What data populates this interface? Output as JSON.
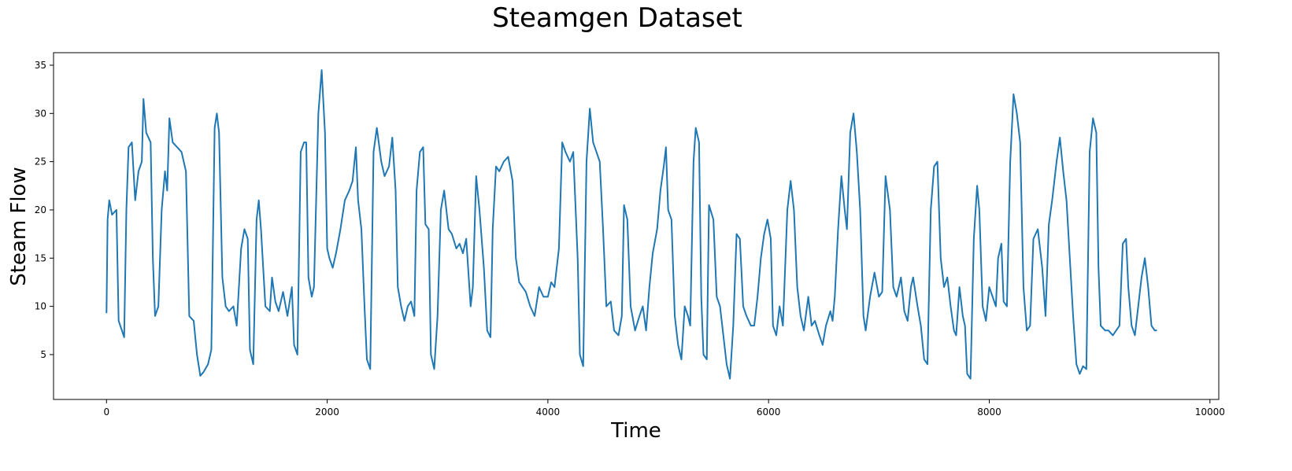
{
  "chart_data": {
    "type": "line",
    "title": "Steamgen Dataset",
    "x_label": "Time",
    "y_label": "Steam Flow",
    "color": "#1f77b4",
    "x": [
      0,
      10,
      25,
      50,
      90,
      110,
      140,
      160,
      180,
      200,
      230,
      260,
      290,
      320,
      335,
      360,
      380,
      400,
      420,
      440,
      470,
      500,
      530,
      550,
      570,
      600,
      640,
      680,
      720,
      750,
      790,
      820,
      850,
      880,
      920,
      950,
      980,
      1000,
      1020,
      1050,
      1080,
      1110,
      1150,
      1180,
      1220,
      1250,
      1280,
      1300,
      1330,
      1360,
      1380,
      1400,
      1440,
      1480,
      1500,
      1530,
      1560,
      1600,
      1640,
      1680,
      1700,
      1730,
      1760,
      1790,
      1810,
      1830,
      1860,
      1880,
      1920,
      1950,
      1980,
      2000,
      2020,
      2050,
      2080,
      2120,
      2160,
      2200,
      2230,
      2260,
      2280,
      2310,
      2340,
      2360,
      2390,
      2420,
      2450,
      2490,
      2520,
      2560,
      2590,
      2620,
      2640,
      2670,
      2700,
      2730,
      2760,
      2790,
      2810,
      2840,
      2870,
      2890,
      2920,
      2940,
      2970,
      3000,
      3030,
      3060,
      3100,
      3130,
      3170,
      3200,
      3230,
      3260,
      3300,
      3320,
      3350,
      3380,
      3420,
      3450,
      3480,
      3500,
      3530,
      3560,
      3600,
      3640,
      3680,
      3710,
      3740,
      3770,
      3800,
      3840,
      3880,
      3920,
      3960,
      4000,
      4030,
      4060,
      4100,
      4130,
      4160,
      4200,
      4230,
      4270,
      4290,
      4320,
      4350,
      4380,
      4410,
      4440,
      4470,
      4500,
      4530,
      4570,
      4600,
      4640,
      4670,
      4690,
      4720,
      4750,
      4790,
      4830,
      4860,
      4890,
      4920,
      4950,
      4990,
      5020,
      5050,
      5070,
      5090,
      5120,
      5150,
      5180,
      5210,
      5240,
      5270,
      5290,
      5320,
      5340,
      5370,
      5390,
      5410,
      5440,
      5460,
      5500,
      5530,
      5560,
      5600,
      5620,
      5650,
      5680,
      5710,
      5740,
      5770,
      5800,
      5840,
      5870,
      5900,
      5930,
      5960,
      5990,
      6020,
      6040,
      6070,
      6100,
      6130,
      6170,
      6200,
      6230,
      6260,
      6290,
      6320,
      6360,
      6390,
      6420,
      6460,
      6490,
      6520,
      6560,
      6580,
      6600,
      6630,
      6660,
      6690,
      6710,
      6740,
      6770,
      6800,
      6830,
      6860,
      6880,
      6920,
      6960,
      7000,
      7030,
      7060,
      7100,
      7130,
      7160,
      7200,
      7230,
      7260,
      7290,
      7310,
      7350,
      7380,
      7410,
      7440,
      7470,
      7500,
      7530,
      7560,
      7590,
      7620,
      7650,
      7680,
      7700,
      7730,
      7760,
      7780,
      7800,
      7830,
      7860,
      7890,
      7910,
      7940,
      7970,
      8000,
      8030,
      8060,
      8080,
      8110,
      8130,
      8160,
      8190,
      8220,
      8250,
      8280,
      8310,
      8340,
      8370,
      8400,
      8440,
      8480,
      8510,
      8540,
      8570,
      8610,
      8640,
      8670,
      8700,
      8730,
      8760,
      8790,
      8820,
      8850,
      8880,
      8910,
      8940,
      8970,
      8990,
      9010,
      9050,
      9080,
      9120,
      9150,
      9180,
      9210,
      9240,
      9260,
      9290,
      9320,
      9350,
      9380,
      9410,
      9440,
      9470,
      9500,
      9520
    ],
    "values": [
      9.3,
      19,
      21,
      19.5,
      20,
      8.5,
      7.5,
      6.8,
      20,
      26.5,
      27,
      21,
      24,
      25,
      31.5,
      28,
      27.5,
      27,
      15,
      9,
      10,
      20,
      24,
      22,
      29.5,
      27,
      26.5,
      26,
      24,
      9,
      8.5,
      5,
      2.8,
      3.2,
      4,
      5.5,
      28.5,
      30,
      28,
      13,
      10,
      9.5,
      10,
      8,
      16,
      18,
      17,
      5.5,
      4,
      19,
      21,
      18,
      10,
      9.5,
      13,
      10.5,
      9.5,
      11.5,
      9,
      12,
      6,
      5,
      26,
      27,
      27,
      13,
      11,
      12,
      30,
      34.5,
      28,
      16,
      15,
      14,
      15.5,
      18,
      21,
      22,
      23,
      26.5,
      21,
      18,
      9.5,
      4.5,
      3.5,
      26,
      28.5,
      25,
      23.5,
      24.5,
      27.5,
      22,
      12,
      10,
      8.5,
      10,
      10.5,
      9,
      22,
      26,
      26.5,
      18.5,
      18,
      5,
      3.5,
      9,
      20,
      22,
      18,
      17.5,
      16,
      16.5,
      15.5,
      17,
      10,
      12,
      23.5,
      20,
      14,
      7.5,
      6.8,
      18,
      24.5,
      24,
      25,
      25.5,
      23,
      15,
      12.5,
      12,
      11.5,
      10,
      9,
      12,
      11,
      11,
      12.5,
      12,
      16,
      27,
      26,
      25,
      26,
      15,
      5,
      3.8,
      25,
      30.5,
      27,
      26,
      25,
      18,
      10,
      10.5,
      7.5,
      7,
      9,
      20.5,
      19,
      10,
      7.5,
      9,
      10,
      7.5,
      12,
      15.5,
      18,
      22,
      24.5,
      26.5,
      20,
      19,
      9,
      6,
      4.5,
      10,
      9,
      8,
      25,
      28.5,
      27,
      11,
      5,
      4.5,
      20.5,
      19,
      11,
      10,
      6,
      4,
      2.5,
      8,
      17.5,
      17,
      10,
      9,
      8,
      8,
      11,
      15,
      17.5,
      19,
      17,
      8,
      7,
      10,
      8,
      20,
      23,
      20,
      12,
      9,
      7.5,
      11,
      8,
      8.5,
      7,
      6,
      8,
      9.5,
      8.5,
      11,
      18,
      23.5,
      20,
      18,
      28,
      30,
      26,
      20,
      9,
      7.5,
      11,
      13.5,
      11,
      11.5,
      23.5,
      20,
      12,
      11,
      13,
      9.5,
      8.5,
      12,
      13,
      10,
      8,
      4.5,
      4,
      20,
      24.5,
      25,
      15,
      12,
      13,
      10,
      7.5,
      7,
      12,
      9,
      8,
      3,
      2.5,
      17,
      22.5,
      20,
      10,
      8.5,
      12,
      11,
      10,
      15,
      16.5,
      10.5,
      10,
      25,
      32,
      30,
      27,
      12,
      7.5,
      8,
      17,
      18,
      14,
      9,
      18.5,
      21,
      25,
      27.5,
      24,
      21,
      15,
      9,
      4,
      3,
      3.8,
      3.5,
      26,
      29.5,
      28,
      14,
      8,
      7.5,
      7.5,
      7,
      7.5,
      8,
      16.5,
      17,
      12,
      8,
      7,
      10,
      13,
      15,
      12,
      8,
      7.5,
      7.5
    ],
    "xlim": [
      -480,
      10080
    ],
    "ylim": [
      0.35,
      36.3
    ],
    "xticks": [
      0,
      2000,
      4000,
      6000,
      8000,
      10000
    ],
    "yticks": [
      5,
      10,
      15,
      20,
      25,
      30,
      35
    ]
  }
}
